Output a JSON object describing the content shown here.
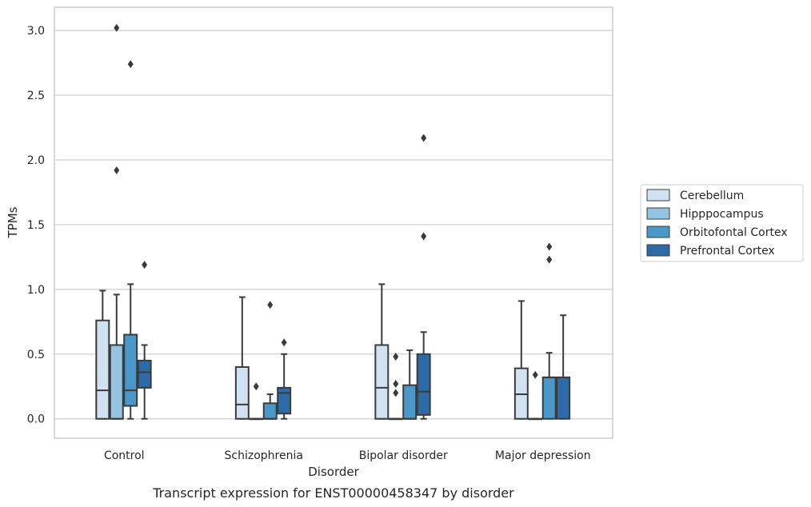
{
  "chart_data": {
    "type": "box",
    "title": "",
    "caption": "Transcript expression for ENST00000458347 by disorder",
    "xlabel": "Disorder",
    "ylabel": "TPMs",
    "ylim": [
      -0.15,
      3.18
    ],
    "yticks": [
      0.0,
      0.5,
      1.0,
      1.5,
      2.0,
      2.5,
      3.0
    ],
    "ytick_labels": [
      "0.0",
      "0.5",
      "1.0",
      "1.5",
      "2.0",
      "2.5",
      "3.0"
    ],
    "grid": "horizontal",
    "legend_position": "right",
    "categories": [
      "Control",
      "Schizophrenia",
      "Bipolar disorder",
      "Major depression"
    ],
    "series": [
      {
        "name": "Cerebellum",
        "color": "#d0e1f2",
        "boxes": [
          {
            "q1": 0.0,
            "median": 0.22,
            "q3": 0.76,
            "whisker_low": 0.0,
            "whisker_high": 0.99,
            "outliers": []
          },
          {
            "q1": 0.0,
            "median": 0.11,
            "q3": 0.4,
            "whisker_low": 0.0,
            "whisker_high": 0.94,
            "outliers": []
          },
          {
            "q1": 0.0,
            "median": 0.24,
            "q3": 0.57,
            "whisker_low": 0.0,
            "whisker_high": 1.04,
            "outliers": []
          },
          {
            "q1": 0.0,
            "median": 0.19,
            "q3": 0.39,
            "whisker_low": 0.0,
            "whisker_high": 0.91,
            "outliers": []
          }
        ]
      },
      {
        "name": "Hipppocampus",
        "color": "#94c4df",
        "boxes": [
          {
            "q1": 0.0,
            "median": 0.0,
            "q3": 0.57,
            "whisker_low": 0.0,
            "whisker_high": 0.96,
            "outliers": [
              1.92,
              3.02
            ]
          },
          {
            "q1": 0.0,
            "median": 0.0,
            "q3": 0.0,
            "whisker_low": 0.0,
            "whisker_high": 0.0,
            "outliers": [
              0.25
            ]
          },
          {
            "q1": 0.0,
            "median": 0.0,
            "q3": 0.0,
            "whisker_low": 0.0,
            "whisker_high": 0.0,
            "outliers": [
              0.2,
              0.27,
              0.48
            ]
          },
          {
            "q1": 0.0,
            "median": 0.0,
            "q3": 0.0,
            "whisker_low": 0.0,
            "whisker_high": 0.0,
            "outliers": [
              0.34
            ]
          }
        ]
      },
      {
        "name": "Orbitofontal Cortex",
        "color": "#4a98c9",
        "boxes": [
          {
            "q1": 0.1,
            "median": 0.22,
            "q3": 0.65,
            "whisker_low": 0.0,
            "whisker_high": 1.04,
            "outliers": [
              2.74
            ]
          },
          {
            "q1": 0.0,
            "median": 0.0,
            "q3": 0.12,
            "whisker_low": 0.0,
            "whisker_high": 0.19,
            "outliers": [
              0.88
            ]
          },
          {
            "q1": 0.0,
            "median": 0.0,
            "q3": 0.26,
            "whisker_low": 0.0,
            "whisker_high": 0.53,
            "outliers": []
          },
          {
            "q1": 0.0,
            "median": 0.32,
            "q3": 0.32,
            "whisker_low": 0.0,
            "whisker_high": 0.51,
            "outliers": [
              1.23,
              1.33
            ]
          }
        ]
      },
      {
        "name": "Prefrontal Cortex",
        "color": "#2c6aa8",
        "boxes": [
          {
            "q1": 0.24,
            "median": 0.36,
            "q3": 0.45,
            "whisker_low": 0.0,
            "whisker_high": 0.57,
            "outliers": [
              1.19
            ]
          },
          {
            "q1": 0.04,
            "median": 0.2,
            "q3": 0.24,
            "whisker_low": 0.0,
            "whisker_high": 0.5,
            "outliers": [
              0.59
            ]
          },
          {
            "q1": 0.03,
            "median": 0.21,
            "q3": 0.5,
            "whisker_low": 0.0,
            "whisker_high": 0.67,
            "outliers": [
              1.41,
              2.17
            ]
          },
          {
            "q1": 0.0,
            "median": 0.32,
            "q3": 0.32,
            "whisker_low": 0.0,
            "whisker_high": 0.8,
            "outliers": []
          }
        ]
      }
    ]
  }
}
